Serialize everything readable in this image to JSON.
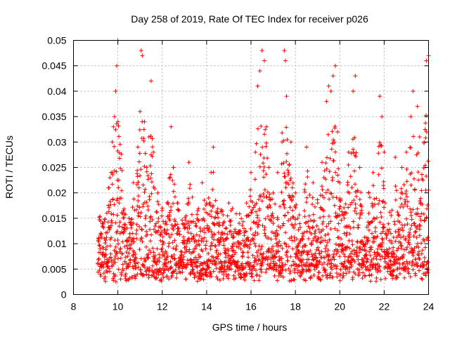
{
  "chart_data": {
    "type": "scatter",
    "title": "Day 258 of 2019, Rate Of TEC Index for receiver p026",
    "xlabel": "GPS time / hours",
    "ylabel": "ROTI / TECUs",
    "xlim": [
      8,
      24
    ],
    "ylim": [
      0,
      0.05
    ],
    "x_ticks": [
      8,
      10,
      12,
      14,
      16,
      18,
      20,
      22,
      24
    ],
    "x_tick_labels": [
      "8",
      "10",
      "12",
      "14",
      "16",
      "18",
      "20",
      "22",
      "24"
    ],
    "y_ticks": [
      0,
      0.005,
      0.01,
      0.015,
      0.02,
      0.025,
      0.03,
      0.035,
      0.04,
      0.045,
      0.05
    ],
    "y_tick_labels": [
      "0",
      "0.005",
      "0.01",
      "0.015",
      "0.02",
      "0.025",
      "0.03",
      "0.035",
      "0.04",
      "0.045",
      "0.05"
    ],
    "grid": true,
    "marker": "+",
    "marker_color": "#ff0000",
    "data_start_hour": 9.1,
    "data_end_hour": 24,
    "series": [
      {
        "name": "ROTI",
        "color": "#ff0000",
        "note": "dense scatter, baseline ~0.004-0.012 TECU/min with bursts",
        "points": [
          [
            9.1,
            0.006
          ],
          [
            9.2,
            0.009
          ],
          [
            9.3,
            0.014
          ],
          [
            9.4,
            0.011
          ],
          [
            9.5,
            0.016
          ],
          [
            9.6,
            0.021
          ],
          [
            9.7,
            0.024
          ],
          [
            9.75,
            0.03
          ],
          [
            9.8,
            0.033
          ],
          [
            9.85,
            0.035
          ],
          [
            9.9,
            0.04
          ],
          [
            9.95,
            0.045
          ],
          [
            10.0,
            0.05
          ],
          [
            10.1,
            0.012
          ],
          [
            10.2,
            0.008
          ],
          [
            10.5,
            0.015
          ],
          [
            10.7,
            0.022
          ],
          [
            10.9,
            0.029
          ],
          [
            11.0,
            0.036
          ],
          [
            11.05,
            0.048
          ],
          [
            11.1,
            0.047
          ],
          [
            11.2,
            0.034
          ],
          [
            11.3,
            0.025
          ],
          [
            11.4,
            0.031
          ],
          [
            11.5,
            0.042
          ],
          [
            11.6,
            0.028
          ],
          [
            11.8,
            0.02
          ],
          [
            12.0,
            0.017
          ],
          [
            12.2,
            0.012
          ],
          [
            12.4,
            0.033
          ],
          [
            12.5,
            0.025
          ],
          [
            12.7,
            0.018
          ],
          [
            13.0,
            0.013
          ],
          [
            13.2,
            0.026
          ],
          [
            13.3,
            0.012
          ],
          [
            13.5,
            0.014
          ],
          [
            13.8,
            0.022
          ],
          [
            14.0,
            0.018
          ],
          [
            14.2,
            0.024
          ],
          [
            14.3,
            0.029
          ],
          [
            14.5,
            0.016
          ],
          [
            14.8,
            0.012
          ],
          [
            15.0,
            0.018
          ],
          [
            15.2,
            0.01
          ],
          [
            15.5,
            0.012
          ],
          [
            15.8,
            0.018
          ],
          [
            16.0,
            0.024
          ],
          [
            16.2,
            0.028
          ],
          [
            16.3,
            0.041
          ],
          [
            16.4,
            0.044
          ],
          [
            16.5,
            0.048
          ],
          [
            16.6,
            0.046
          ],
          [
            16.7,
            0.033
          ],
          [
            16.8,
            0.025
          ],
          [
            17.0,
            0.02
          ],
          [
            17.2,
            0.024
          ],
          [
            17.4,
            0.03
          ],
          [
            17.5,
            0.048
          ],
          [
            17.55,
            0.046
          ],
          [
            17.6,
            0.039
          ],
          [
            17.8,
            0.03
          ],
          [
            18.0,
            0.02
          ],
          [
            18.3,
            0.011
          ],
          [
            18.5,
            0.029
          ],
          [
            18.8,
            0.022
          ],
          [
            19.0,
            0.018
          ],
          [
            19.2,
            0.026
          ],
          [
            19.4,
            0.038
          ],
          [
            19.5,
            0.041
          ],
          [
            19.6,
            0.04
          ],
          [
            19.7,
            0.043
          ],
          [
            19.8,
            0.045
          ],
          [
            19.9,
            0.032
          ],
          [
            20.0,
            0.022
          ],
          [
            20.2,
            0.015
          ],
          [
            20.4,
            0.028
          ],
          [
            20.6,
            0.04
          ],
          [
            20.7,
            0.043
          ],
          [
            20.9,
            0.025
          ],
          [
            21.0,
            0.016
          ],
          [
            21.3,
            0.02
          ],
          [
            21.5,
            0.024
          ],
          [
            21.8,
            0.039
          ],
          [
            21.9,
            0.035
          ],
          [
            22.0,
            0.028
          ],
          [
            22.3,
            0.012
          ],
          [
            22.5,
            0.027
          ],
          [
            22.8,
            0.025
          ],
          [
            23.0,
            0.028
          ],
          [
            23.2,
            0.035
          ],
          [
            23.3,
            0.04
          ],
          [
            23.5,
            0.037
          ],
          [
            23.6,
            0.031
          ],
          [
            23.8,
            0.03
          ],
          [
            23.9,
            0.046
          ],
          [
            24.0,
            0.047
          ]
        ]
      }
    ]
  }
}
